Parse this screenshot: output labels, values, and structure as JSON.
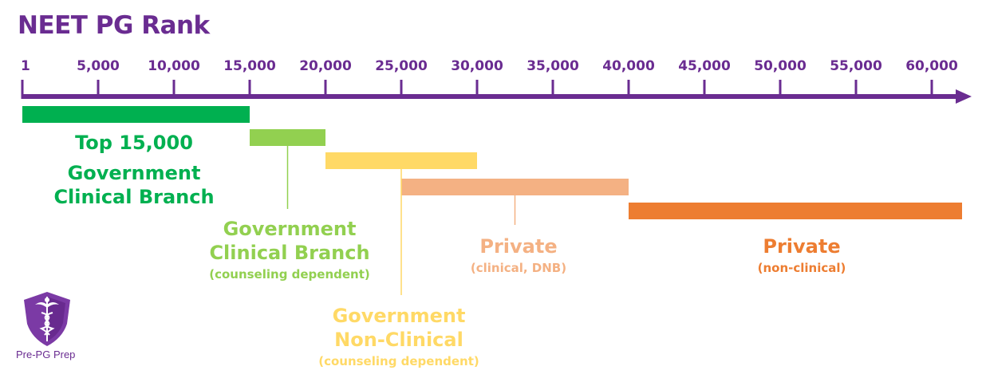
{
  "title": "NEET PG Rank",
  "axis": {
    "ticks": [
      "1",
      "5,000",
      "10,000",
      "15,000",
      "20,000",
      "25,000",
      "30,000",
      "35,000",
      "40,000",
      "45,000",
      "50,000",
      "55,000",
      "60,000"
    ],
    "color": "#6a2c91"
  },
  "bands": [
    {
      "id": "govt-clinical",
      "from": 1,
      "to": 15000,
      "color": "#00b050",
      "row": 0,
      "lines": [
        "Top 15,000",
        "Government",
        "Clinical Branch"
      ],
      "sub": ""
    },
    {
      "id": "govt-clinical-counseling",
      "from": 15000,
      "to": 20000,
      "color": "#92d050",
      "row": 1,
      "lines": [
        "Government",
        "Clinical Branch"
      ],
      "sub": "(counseling dependent)"
    },
    {
      "id": "govt-nonclinical",
      "from": 20000,
      "to": 30000,
      "color": "#ffd966",
      "row": 2,
      "lines": [
        "Government",
        "Non-Clinical"
      ],
      "sub": "(counseling dependent)"
    },
    {
      "id": "private-clinical",
      "from": 25000,
      "to": 40000,
      "color": "#f4b183",
      "row": 3,
      "lines": [
        "Private"
      ],
      "sub": "(clinical, DNB)"
    },
    {
      "id": "private-nonclinical",
      "from": 40000,
      "to": 62000,
      "color": "#ed7d31",
      "row": 4,
      "lines": [
        "Private"
      ],
      "sub": "(non-clinical)"
    }
  ],
  "logo": {
    "text": "Pre-PG Prep",
    "icon": "caduceus-shield-icon",
    "color": "#6a2c91"
  }
}
